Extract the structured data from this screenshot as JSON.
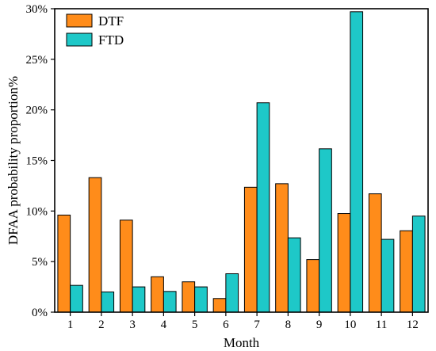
{
  "chart_data": {
    "type": "bar",
    "categories": [
      "1",
      "2",
      "3",
      "4",
      "5",
      "6",
      "7",
      "8",
      "9",
      "10",
      "11",
      "12"
    ],
    "series": [
      {
        "name": "DTF",
        "color": "#ff8c1a",
        "values": [
          9.6,
          13.3,
          9.1,
          3.5,
          3.0,
          1.35,
          12.35,
          12.7,
          5.2,
          9.75,
          11.7,
          8.05
        ]
      },
      {
        "name": "FTD",
        "color": "#1ec8c8",
        "values": [
          2.65,
          2.0,
          2.5,
          2.05,
          2.5,
          3.8,
          20.7,
          7.35,
          16.15,
          29.7,
          7.2,
          9.5
        ]
      }
    ],
    "title": "",
    "xlabel": "Month",
    "ylabel": "DFAA probability proportion%",
    "ylim": [
      0,
      30
    ],
    "yticks": [
      0,
      5,
      10,
      15,
      20,
      25,
      30
    ],
    "ytick_labels": [
      "0%",
      "5%",
      "10%",
      "15%",
      "20%",
      "25%",
      "30%"
    ],
    "grid": false,
    "legend_position": "top-left"
  }
}
